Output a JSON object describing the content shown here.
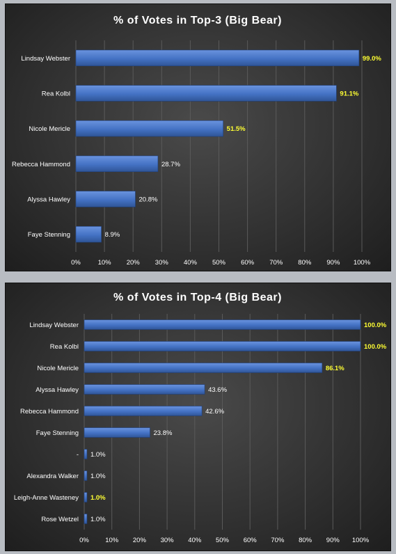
{
  "colors": {
    "bar": "#4472C4",
    "bar_light": "#6a93de",
    "label_default": "#ffffff",
    "label_highlight": "#ffff33"
  },
  "chart_data": [
    {
      "type": "bar",
      "orientation": "horizontal",
      "title": "% of Votes in Top-3 (Big Bear)",
      "categories": [
        "Lindsay Webster",
        "Rea Kolbl",
        "Nicole Mericle",
        "Rebecca Hammond",
        "Alyssa Hawley",
        "Faye Stenning"
      ],
      "values": [
        99.0,
        91.1,
        51.5,
        28.7,
        20.8,
        8.9
      ],
      "data_labels": [
        "99.0%",
        "91.1%",
        "51.5%",
        "28.7%",
        "20.8%",
        "8.9%"
      ],
      "highlighted": [
        true,
        true,
        true,
        false,
        false,
        false
      ],
      "xlim": [
        0,
        100
      ],
      "xticks": [
        "0%",
        "10%",
        "20%",
        "30%",
        "40%",
        "50%",
        "60%",
        "70%",
        "80%",
        "90%",
        "100%"
      ],
      "grid": true,
      "legend": "none"
    },
    {
      "type": "bar",
      "orientation": "horizontal",
      "title": "% of Votes in Top-4 (Big Bear)",
      "categories": [
        "Lindsay Webster",
        "Rea Kolbl",
        "Nicole Mericle",
        "Alyssa Hawley",
        "Rebecca Hammond",
        "Faye Stenning",
        "-",
        "Alexandra Walker",
        "Leigh-Anne Wasteney",
        "Rose Wetzel"
      ],
      "values": [
        100.0,
        100.0,
        86.1,
        43.6,
        42.6,
        23.8,
        1.0,
        1.0,
        1.0,
        1.0
      ],
      "data_labels": [
        "100.0%",
        "100.0%",
        "86.1%",
        "43.6%",
        "42.6%",
        "23.8%",
        "1.0%",
        "1.0%",
        "1.0%",
        "1.0%"
      ],
      "highlighted": [
        true,
        true,
        true,
        false,
        false,
        false,
        false,
        false,
        true,
        false
      ],
      "xlim": [
        0,
        100
      ],
      "xticks": [
        "0%",
        "10%",
        "20%",
        "30%",
        "40%",
        "50%",
        "60%",
        "70%",
        "80%",
        "90%",
        "100%"
      ],
      "grid": true,
      "legend": "none"
    }
  ]
}
